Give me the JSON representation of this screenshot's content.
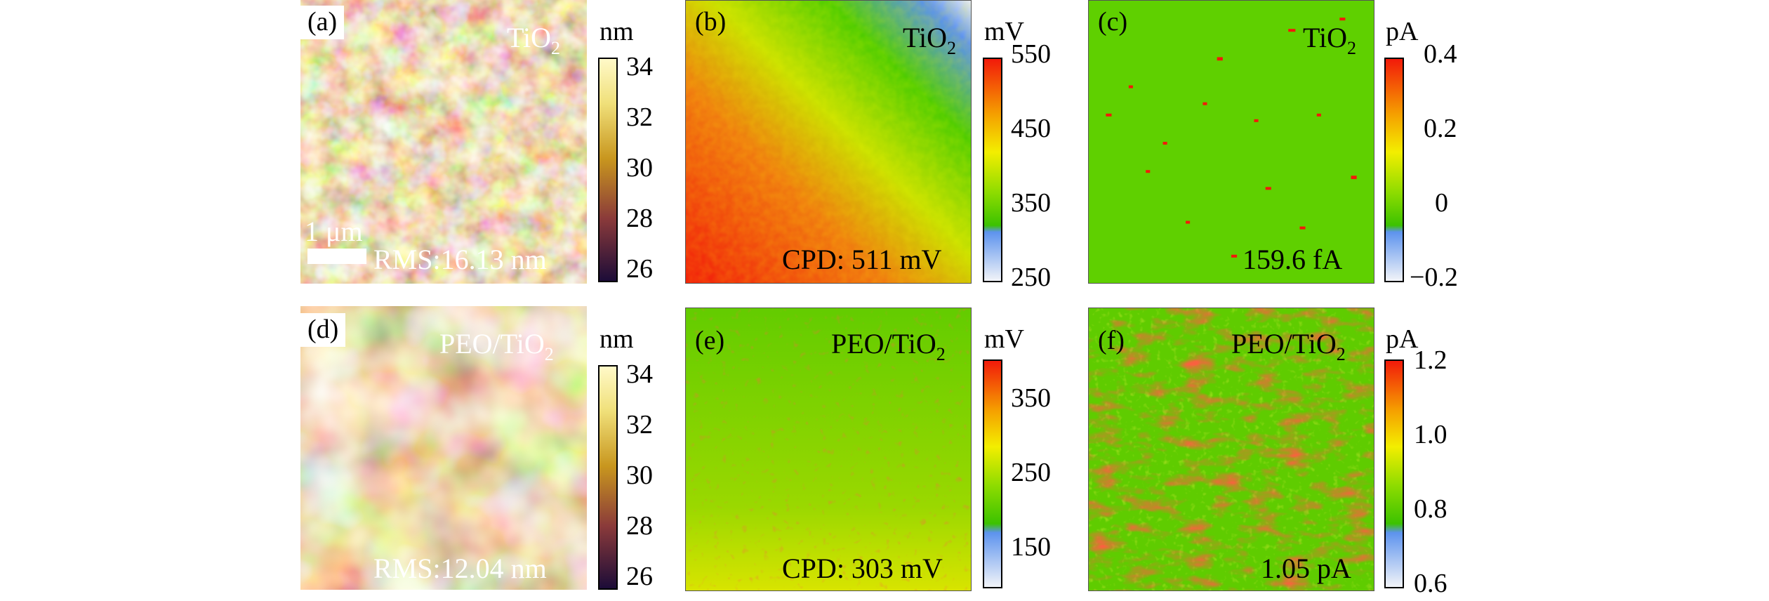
{
  "panels": [
    {
      "letter": "(a)",
      "material": "TiO",
      "subscript": "2",
      "note": "RMS:16.13 nm",
      "scalebar": "1 μm",
      "colorbar": {
        "unit": "nm",
        "ticks": [
          "34",
          "32",
          "30",
          "28",
          "26"
        ],
        "colormap": "afm-gold"
      }
    },
    {
      "letter": "(b)",
      "material": "TiO",
      "subscript": "2",
      "note": "CPD: 511 mV",
      "colorbar": {
        "unit": "mV",
        "ticks": [
          "550",
          "450",
          "350",
          "250"
        ],
        "colormap": "rainbow-red-top"
      }
    },
    {
      "letter": "(c)",
      "material": "TiO",
      "subscript": "2",
      "note": "159.6 fA",
      "colorbar": {
        "unit": "pA",
        "ticks": [
          "0.4",
          "0.2",
          "0",
          "−0.2"
        ],
        "colormap": "rainbow-red-top"
      }
    },
    {
      "letter": "(d)",
      "material": "PEO/TiO",
      "subscript": "2",
      "note": "RMS:12.04 nm",
      "colorbar": {
        "unit": "nm",
        "ticks": [
          "34",
          "32",
          "30",
          "28",
          "26"
        ],
        "colormap": "afm-gold"
      }
    },
    {
      "letter": "(e)",
      "material": "PEO/TiO",
      "subscript": "2",
      "note": "CPD: 303 mV",
      "colorbar": {
        "unit": "mV",
        "ticks": [
          "350",
          "250",
          "150"
        ],
        "colormap": "rainbow-red-top"
      }
    },
    {
      "letter": "(f)",
      "material": "PEO/TiO",
      "subscript": "2",
      "note": "1.05 pA",
      "colorbar": {
        "unit": "pA",
        "ticks": [
          "1.2",
          "1.0",
          "0.8",
          "0.6"
        ],
        "colormap": "rainbow-red-top"
      }
    }
  ],
  "colors": {
    "afm_dark": "#1c0c38",
    "afm_mid": "#b5761a",
    "afm_light": "#fff9c8",
    "kpfm_red": "#f21a0a",
    "kpfm_yellow": "#f3ee00",
    "kpfm_green": "#4fcc00",
    "kpfm_blue": "#5d93ee",
    "kpfm_white": "#f2f4f8"
  }
}
